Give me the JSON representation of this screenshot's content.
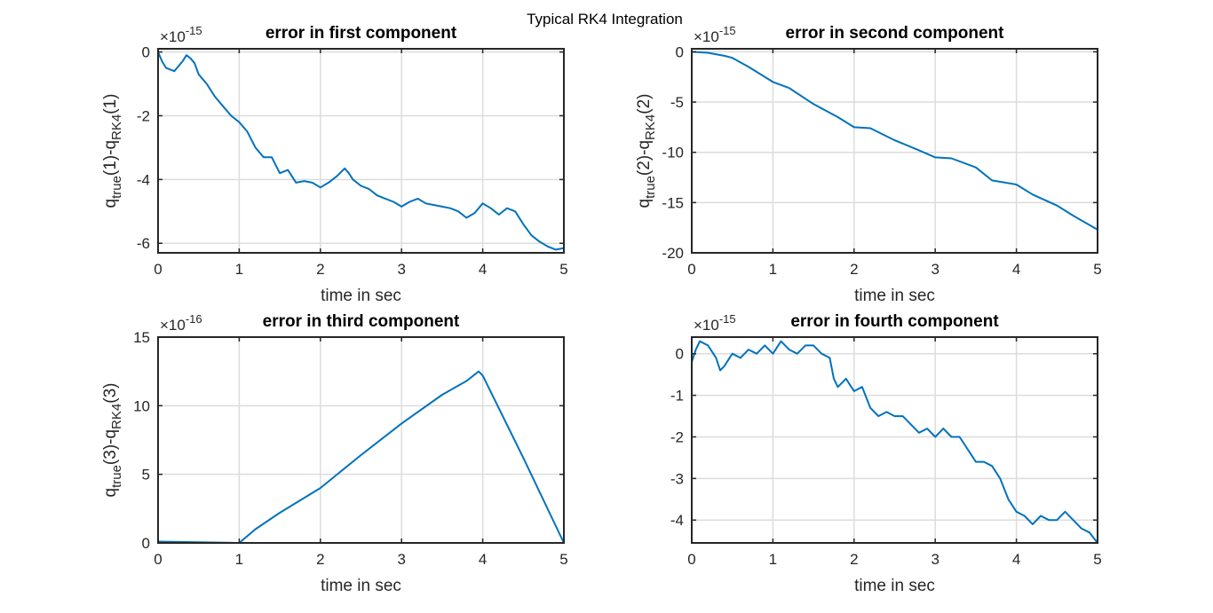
{
  "figure": {
    "supertitle": "Typical RK4 Integration",
    "line_color": "#0072BD"
  },
  "chart_data": [
    {
      "type": "line",
      "title": "error in first component",
      "xlabel": "time in sec",
      "ylabel": {
        "base": "q",
        "sub1": "true",
        "mid": "(1)-q",
        "sub2": "RK4",
        "end": "(1)"
      },
      "exponent": {
        "base": "×10",
        "power": "-15"
      },
      "xlim": [
        0,
        5
      ],
      "ylim": [
        -6.3,
        0.1
      ],
      "xticks": [
        0,
        1,
        2,
        3,
        4,
        5
      ],
      "yticks": [
        -6,
        -4,
        -2,
        0
      ],
      "grid": true,
      "series": [
        {
          "x": [
            0,
            0.05,
            0.1,
            0.2,
            0.3,
            0.35,
            0.4,
            0.45,
            0.5,
            0.6,
            0.7,
            0.8,
            0.9,
            1.0,
            1.1,
            1.2,
            1.3,
            1.4,
            1.5,
            1.6,
            1.7,
            1.8,
            1.9,
            2.0,
            2.1,
            2.2,
            2.3,
            2.35,
            2.4,
            2.5,
            2.6,
            2.7,
            2.8,
            2.9,
            3.0,
            3.1,
            3.2,
            3.3,
            3.4,
            3.5,
            3.6,
            3.7,
            3.8,
            3.9,
            4.0,
            4.1,
            4.2,
            4.3,
            4.4,
            4.5,
            4.6,
            4.7,
            4.8,
            4.9,
            5.0
          ],
          "y": [
            0,
            -0.3,
            -0.5,
            -0.6,
            -0.3,
            -0.1,
            -0.2,
            -0.35,
            -0.7,
            -1.0,
            -1.4,
            -1.7,
            -2.0,
            -2.2,
            -2.5,
            -3.0,
            -3.3,
            -3.3,
            -3.8,
            -3.7,
            -4.1,
            -4.05,
            -4.1,
            -4.25,
            -4.1,
            -3.9,
            -3.65,
            -3.8,
            -4.0,
            -4.2,
            -4.3,
            -4.5,
            -4.6,
            -4.7,
            -4.85,
            -4.7,
            -4.6,
            -4.75,
            -4.8,
            -4.85,
            -4.9,
            -5.0,
            -5.2,
            -5.05,
            -4.75,
            -4.9,
            -5.1,
            -4.9,
            -5.0,
            -5.4,
            -5.75,
            -5.95,
            -6.1,
            -6.2,
            -6.15
          ]
        }
      ]
    },
    {
      "type": "line",
      "title": "error in second component",
      "xlabel": "time in sec",
      "ylabel": {
        "base": "q",
        "sub1": "true",
        "mid": "(2)-q",
        "sub2": "RK4",
        "end": "(2)"
      },
      "exponent": {
        "base": "×10",
        "power": "-15"
      },
      "xlim": [
        0,
        5
      ],
      "ylim": [
        -20,
        0.3
      ],
      "xticks": [
        0,
        1,
        2,
        3,
        4,
        5
      ],
      "yticks": [
        -20,
        -15,
        -10,
        -5,
        0
      ],
      "grid": true,
      "series": [
        {
          "x": [
            0,
            0.2,
            0.4,
            0.5,
            0.7,
            1.0,
            1.2,
            1.5,
            1.8,
            2.0,
            2.2,
            2.5,
            2.8,
            3.0,
            3.2,
            3.5,
            3.7,
            4.0,
            4.2,
            4.5,
            4.7,
            5.0
          ],
          "y": [
            0,
            -0.1,
            -0.4,
            -0.6,
            -1.5,
            -3.0,
            -3.6,
            -5.2,
            -6.5,
            -7.5,
            -7.6,
            -8.8,
            -9.8,
            -10.5,
            -10.6,
            -11.5,
            -12.8,
            -13.2,
            -14.2,
            -15.3,
            -16.3,
            -17.7
          ]
        }
      ]
    },
    {
      "type": "line",
      "title": "error in third component",
      "xlabel": "time in sec",
      "ylabel": {
        "base": "q",
        "sub1": "true",
        "mid": "(3)-q",
        "sub2": "RK4",
        "end": "(3)"
      },
      "exponent": {
        "base": "×10",
        "power": "-16"
      },
      "xlim": [
        0,
        5
      ],
      "ylim": [
        0,
        15
      ],
      "xticks": [
        0,
        1,
        2,
        3,
        4,
        5
      ],
      "yticks": [
        0,
        5,
        10,
        15
      ],
      "grid": true,
      "series": [
        {
          "x": [
            0,
            0.5,
            1.0,
            1.2,
            1.5,
            2.0,
            2.5,
            3.0,
            3.5,
            3.8,
            3.95,
            4.0,
            4.5,
            5.0
          ],
          "y": [
            0.1,
            0.05,
            0,
            1.0,
            2.2,
            4.0,
            6.4,
            8.7,
            10.8,
            11.8,
            12.5,
            12.2,
            6.2,
            0
          ]
        }
      ]
    },
    {
      "type": "line",
      "title": "error in fourth component",
      "xlabel": "time in sec",
      "ylabel": null,
      "exponent": {
        "base": "×10",
        "power": "-15"
      },
      "xlim": [
        0,
        5
      ],
      "ylim": [
        -4.55,
        0.4
      ],
      "xticks": [
        0,
        1,
        2,
        3,
        4,
        5
      ],
      "yticks": [
        -4,
        -3,
        -2,
        -1,
        0
      ],
      "grid": true,
      "series": [
        {
          "x": [
            0,
            0.05,
            0.1,
            0.2,
            0.3,
            0.35,
            0.4,
            0.5,
            0.6,
            0.7,
            0.8,
            0.9,
            1.0,
            1.1,
            1.2,
            1.3,
            1.4,
            1.5,
            1.6,
            1.7,
            1.75,
            1.8,
            1.9,
            2.0,
            2.1,
            2.2,
            2.3,
            2.4,
            2.5,
            2.6,
            2.7,
            2.8,
            2.9,
            3.0,
            3.1,
            3.2,
            3.3,
            3.4,
            3.5,
            3.6,
            3.7,
            3.8,
            3.9,
            4.0,
            4.1,
            4.2,
            4.3,
            4.4,
            4.5,
            4.6,
            4.7,
            4.8,
            4.9,
            5.0
          ],
          "y": [
            -0.2,
            0.1,
            0.3,
            0.2,
            -0.1,
            -0.4,
            -0.3,
            0.0,
            -0.1,
            0.1,
            0.0,
            0.2,
            0.0,
            0.3,
            0.1,
            0.0,
            0.2,
            0.2,
            0.0,
            -0.1,
            -0.6,
            -0.8,
            -0.6,
            -0.9,
            -0.8,
            -1.3,
            -1.5,
            -1.4,
            -1.5,
            -1.5,
            -1.7,
            -1.9,
            -1.8,
            -2.0,
            -1.8,
            -2.0,
            -2.0,
            -2.3,
            -2.6,
            -2.6,
            -2.7,
            -3.0,
            -3.5,
            -3.8,
            -3.9,
            -4.1,
            -3.9,
            -4.0,
            -4.0,
            -3.8,
            -4.0,
            -4.2,
            -4.3,
            -4.55
          ]
        }
      ]
    }
  ]
}
